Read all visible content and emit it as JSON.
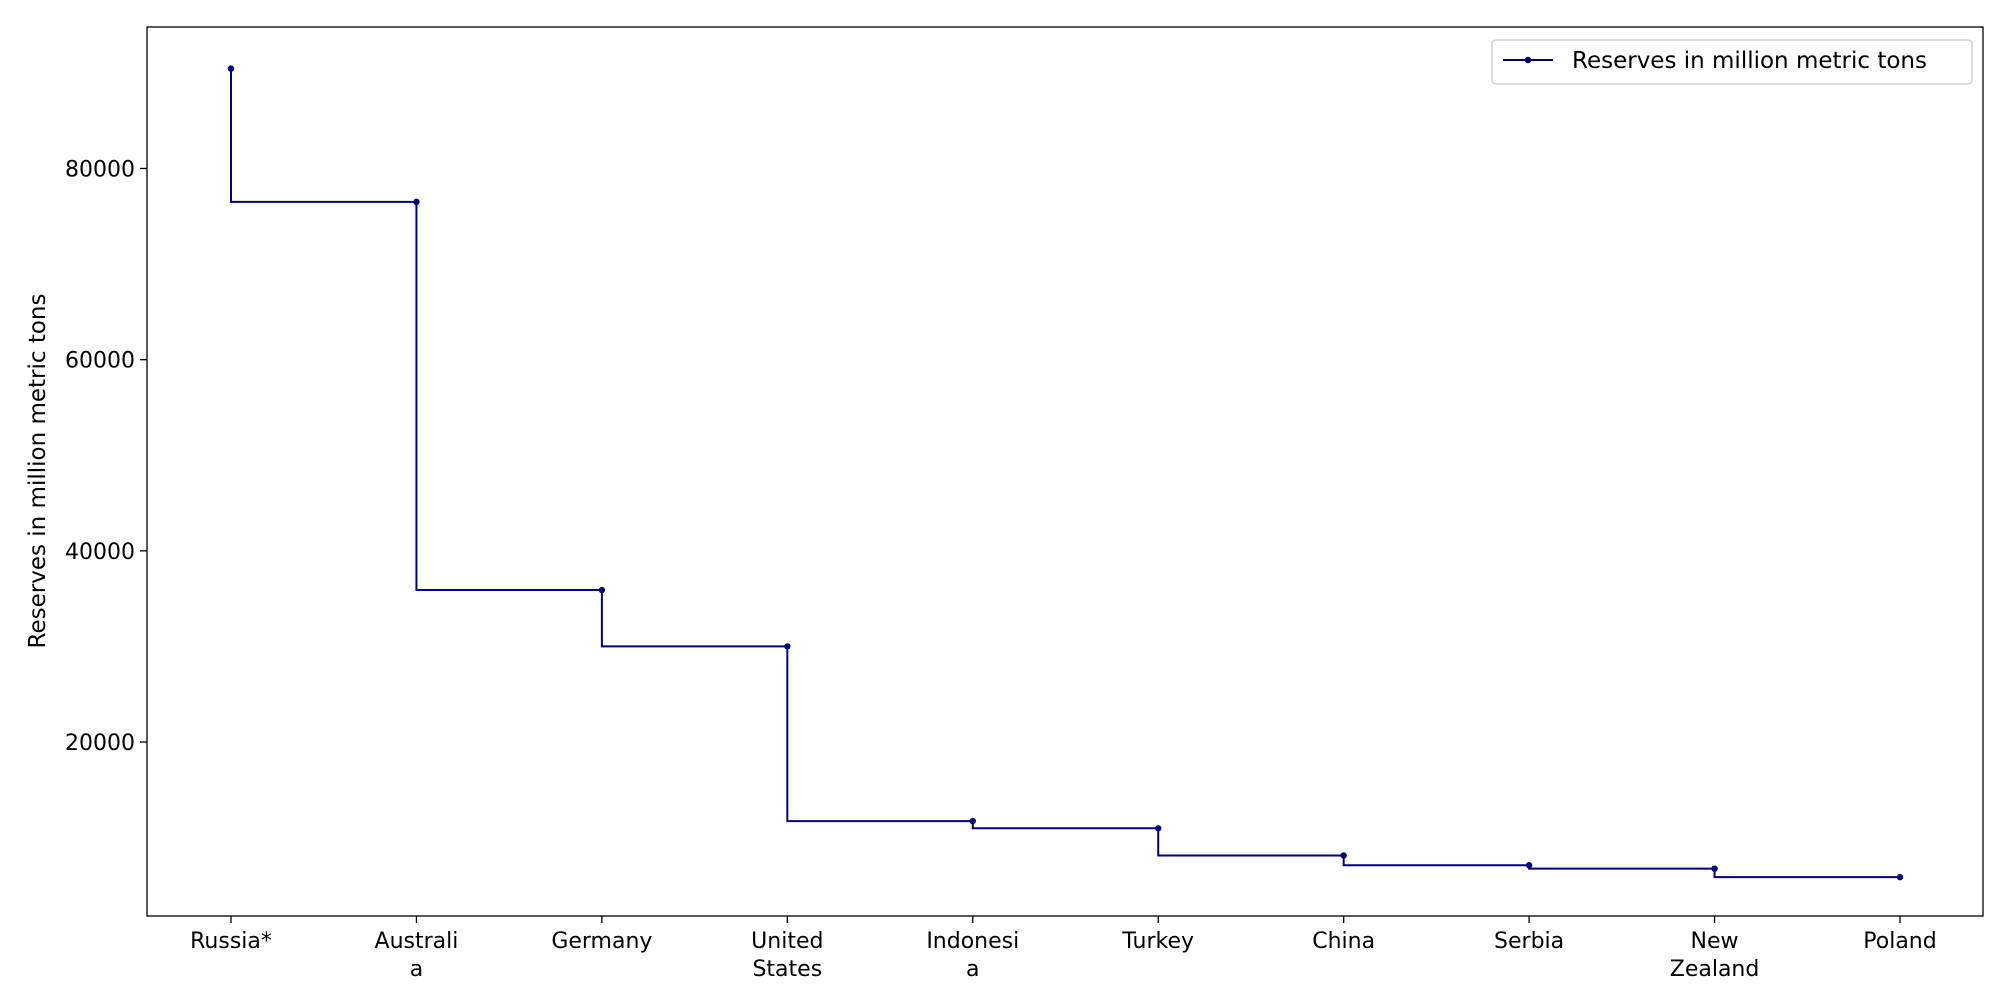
{
  "chart_data": {
    "type": "line",
    "step": "pre",
    "categories": [
      "Russia*",
      "Australia",
      "Germany",
      "United States",
      "Indonesia",
      "Turkey",
      "China",
      "Serbia",
      "New Zealand",
      "Poland"
    ],
    "tick_labels": [
      [
        "Russia*"
      ],
      [
        "Australi",
        "a"
      ],
      [
        "Germany"
      ],
      [
        "United",
        "States"
      ],
      [
        "Indonesi",
        "a"
      ],
      [
        "Turkey"
      ],
      [
        "China"
      ],
      [
        "Serbia"
      ],
      [
        "New",
        "Zealand"
      ],
      [
        "Poland"
      ]
    ],
    "series": [
      {
        "name": "Reserves in million metric tons",
        "values": [
          90447,
          76508,
          35900,
          30003,
          11728,
          10975,
          8128,
          7112,
          6750,
          5865
        ]
      }
    ],
    "xlabel": "",
    "ylabel": "Reserves in million metric tons",
    "ylim": [
      1800,
      94800
    ],
    "yticks": [
      20000,
      40000,
      60000,
      80000
    ],
    "grid": false,
    "legend": "top-right",
    "colors": {
      "line": "#00007f"
    }
  }
}
